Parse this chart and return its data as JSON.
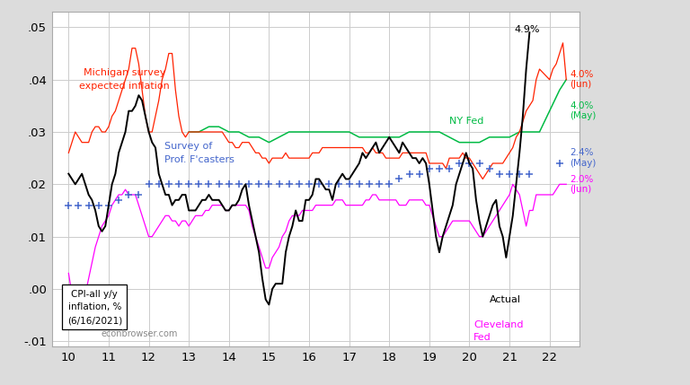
{
  "xlim": [
    9.58,
    22.75
  ],
  "ylim": [
    -0.011,
    0.053
  ],
  "yticks": [
    -0.01,
    0.0,
    0.01,
    0.02,
    0.03,
    0.04,
    0.05
  ],
  "ytick_labels": [
    "-.01",
    ".00",
    ".01",
    ".02",
    ".03",
    ".04",
    ".05"
  ],
  "xticks": [
    10,
    11,
    12,
    13,
    14,
    15,
    16,
    17,
    18,
    19,
    20,
    21,
    22
  ],
  "background_color": "#ffffff",
  "fig_color": "#dcdcdc",
  "grid_color": "#cccccc",
  "watermark": "econbrowser.com",
  "annotation_box": "CPI-all y/y\ninflation, %\n(6/16/2021)",
  "colors": {
    "actual": "#000000",
    "michigan": "#ff2200",
    "ny_fed": "#00bb44",
    "spf": "#4466cc",
    "cleveland": "#ff00ff"
  },
  "actual_x": [
    10.0,
    10.083,
    10.167,
    10.25,
    10.333,
    10.417,
    10.5,
    10.583,
    10.667,
    10.75,
    10.833,
    10.917,
    11.0,
    11.083,
    11.167,
    11.25,
    11.333,
    11.417,
    11.5,
    11.583,
    11.667,
    11.75,
    11.833,
    11.917,
    12.0,
    12.083,
    12.167,
    12.25,
    12.333,
    12.417,
    12.5,
    12.583,
    12.667,
    12.75,
    12.833,
    12.917,
    13.0,
    13.083,
    13.167,
    13.25,
    13.333,
    13.417,
    13.5,
    13.583,
    13.667,
    13.75,
    13.833,
    13.917,
    14.0,
    14.083,
    14.167,
    14.25,
    14.333,
    14.417,
    14.5,
    14.583,
    14.667,
    14.75,
    14.833,
    14.917,
    15.0,
    15.083,
    15.167,
    15.25,
    15.333,
    15.417,
    15.5,
    15.583,
    15.667,
    15.75,
    15.833,
    15.917,
    16.0,
    16.083,
    16.167,
    16.25,
    16.333,
    16.417,
    16.5,
    16.583,
    16.667,
    16.75,
    16.833,
    16.917,
    17.0,
    17.083,
    17.167,
    17.25,
    17.333,
    17.417,
    17.5,
    17.583,
    17.667,
    17.75,
    17.833,
    17.917,
    18.0,
    18.083,
    18.167,
    18.25,
    18.333,
    18.417,
    18.5,
    18.583,
    18.667,
    18.75,
    18.833,
    18.917,
    19.0,
    19.083,
    19.167,
    19.25,
    19.333,
    19.417,
    19.5,
    19.583,
    19.667,
    19.75,
    19.833,
    19.917,
    20.0,
    20.083,
    20.167,
    20.25,
    20.333,
    20.417,
    20.5,
    20.583,
    20.667,
    20.75,
    20.833,
    20.917,
    21.0,
    21.083,
    21.167,
    21.25,
    21.333,
    21.417,
    21.5
  ],
  "actual_y": [
    0.022,
    0.021,
    0.02,
    0.021,
    0.022,
    0.02,
    0.018,
    0.017,
    0.015,
    0.012,
    0.011,
    0.012,
    0.016,
    0.02,
    0.022,
    0.026,
    0.028,
    0.03,
    0.034,
    0.034,
    0.035,
    0.037,
    0.036,
    0.033,
    0.03,
    0.028,
    0.027,
    0.022,
    0.02,
    0.018,
    0.018,
    0.016,
    0.017,
    0.017,
    0.018,
    0.018,
    0.015,
    0.015,
    0.015,
    0.016,
    0.017,
    0.017,
    0.018,
    0.017,
    0.017,
    0.017,
    0.016,
    0.015,
    0.015,
    0.016,
    0.016,
    0.017,
    0.019,
    0.02,
    0.016,
    0.013,
    0.01,
    0.007,
    0.002,
    -0.002,
    -0.003,
    0.0,
    0.001,
    0.001,
    0.001,
    0.007,
    0.01,
    0.012,
    0.015,
    0.013,
    0.013,
    0.017,
    0.017,
    0.018,
    0.021,
    0.021,
    0.02,
    0.019,
    0.019,
    0.017,
    0.02,
    0.021,
    0.022,
    0.021,
    0.021,
    0.022,
    0.023,
    0.024,
    0.026,
    0.025,
    0.026,
    0.027,
    0.028,
    0.026,
    0.027,
    0.028,
    0.029,
    0.028,
    0.027,
    0.026,
    0.028,
    0.027,
    0.026,
    0.025,
    0.025,
    0.024,
    0.025,
    0.024,
    0.02,
    0.015,
    0.01,
    0.007,
    0.01,
    0.012,
    0.014,
    0.016,
    0.02,
    0.022,
    0.024,
    0.026,
    0.024,
    0.023,
    0.017,
    0.013,
    0.01,
    0.012,
    0.014,
    0.016,
    0.017,
    0.012,
    0.01,
    0.006,
    0.01,
    0.014,
    0.02,
    0.026,
    0.033,
    0.042,
    0.049
  ],
  "michigan_x": [
    10.0,
    10.083,
    10.167,
    10.25,
    10.333,
    10.417,
    10.5,
    10.583,
    10.667,
    10.75,
    10.833,
    10.917,
    11.0,
    11.083,
    11.167,
    11.25,
    11.333,
    11.417,
    11.5,
    11.583,
    11.667,
    11.75,
    11.833,
    11.917,
    12.0,
    12.083,
    12.167,
    12.25,
    12.333,
    12.417,
    12.5,
    12.583,
    12.667,
    12.75,
    12.833,
    12.917,
    13.0,
    13.083,
    13.167,
    13.25,
    13.333,
    13.417,
    13.5,
    13.583,
    13.667,
    13.75,
    13.833,
    13.917,
    14.0,
    14.083,
    14.167,
    14.25,
    14.333,
    14.417,
    14.5,
    14.583,
    14.667,
    14.75,
    14.833,
    14.917,
    15.0,
    15.083,
    15.167,
    15.25,
    15.333,
    15.417,
    15.5,
    15.583,
    15.667,
    15.75,
    15.833,
    15.917,
    16.0,
    16.083,
    16.167,
    16.25,
    16.333,
    16.417,
    16.5,
    16.583,
    16.667,
    16.75,
    16.833,
    16.917,
    17.0,
    17.083,
    17.167,
    17.25,
    17.333,
    17.417,
    17.5,
    17.583,
    17.667,
    17.75,
    17.833,
    17.917,
    18.0,
    18.083,
    18.167,
    18.25,
    18.333,
    18.417,
    18.5,
    18.583,
    18.667,
    18.75,
    18.833,
    18.917,
    19.0,
    19.083,
    19.167,
    19.25,
    19.333,
    19.417,
    19.5,
    19.583,
    19.667,
    19.75,
    19.833,
    19.917,
    20.0,
    20.083,
    20.167,
    20.25,
    20.333,
    20.417,
    20.5,
    20.583,
    20.667,
    20.75,
    20.833,
    20.917,
    21.0,
    21.083,
    21.167,
    21.25,
    21.333,
    21.417,
    21.5,
    21.583,
    21.667,
    21.75,
    22.0,
    22.083,
    22.167,
    22.25,
    22.333,
    22.417
  ],
  "michigan_y": [
    0.026,
    0.028,
    0.03,
    0.029,
    0.028,
    0.028,
    0.028,
    0.03,
    0.031,
    0.031,
    0.03,
    0.03,
    0.031,
    0.033,
    0.034,
    0.036,
    0.038,
    0.04,
    0.042,
    0.046,
    0.046,
    0.043,
    0.038,
    0.033,
    0.03,
    0.03,
    0.033,
    0.036,
    0.04,
    0.042,
    0.045,
    0.045,
    0.038,
    0.033,
    0.03,
    0.029,
    0.03,
    0.03,
    0.03,
    0.03,
    0.03,
    0.03,
    0.03,
    0.03,
    0.03,
    0.03,
    0.03,
    0.029,
    0.028,
    0.028,
    0.027,
    0.027,
    0.028,
    0.028,
    0.028,
    0.027,
    0.026,
    0.026,
    0.025,
    0.025,
    0.024,
    0.025,
    0.025,
    0.025,
    0.025,
    0.026,
    0.025,
    0.025,
    0.025,
    0.025,
    0.025,
    0.025,
    0.025,
    0.026,
    0.026,
    0.026,
    0.027,
    0.027,
    0.027,
    0.027,
    0.027,
    0.027,
    0.027,
    0.027,
    0.027,
    0.027,
    0.027,
    0.027,
    0.027,
    0.026,
    0.026,
    0.027,
    0.026,
    0.026,
    0.026,
    0.025,
    0.025,
    0.025,
    0.025,
    0.025,
    0.026,
    0.026,
    0.026,
    0.026,
    0.026,
    0.026,
    0.026,
    0.026,
    0.024,
    0.024,
    0.024,
    0.024,
    0.024,
    0.023,
    0.025,
    0.025,
    0.025,
    0.025,
    0.026,
    0.025,
    0.025,
    0.024,
    0.023,
    0.022,
    0.021,
    0.022,
    0.023,
    0.024,
    0.024,
    0.024,
    0.024,
    0.025,
    0.026,
    0.027,
    0.029,
    0.03,
    0.032,
    0.034,
    0.035,
    0.036,
    0.04,
    0.042,
    0.04,
    0.042,
    0.043,
    0.045,
    0.047,
    0.04
  ],
  "ny_fed_x": [
    13.0,
    13.25,
    13.5,
    13.75,
    14.0,
    14.25,
    14.5,
    14.75,
    15.0,
    15.25,
    15.5,
    15.75,
    16.0,
    16.25,
    16.5,
    16.75,
    17.0,
    17.25,
    17.5,
    17.75,
    18.0,
    18.25,
    18.5,
    18.75,
    19.0,
    19.25,
    19.5,
    19.75,
    20.0,
    20.25,
    20.5,
    20.75,
    21.0,
    21.25,
    21.5,
    21.75,
    22.0,
    22.25,
    22.417
  ],
  "ny_fed_y": [
    0.03,
    0.03,
    0.031,
    0.031,
    0.03,
    0.03,
    0.029,
    0.029,
    0.028,
    0.029,
    0.03,
    0.03,
    0.03,
    0.03,
    0.03,
    0.03,
    0.03,
    0.029,
    0.029,
    0.029,
    0.029,
    0.029,
    0.03,
    0.03,
    0.03,
    0.03,
    0.029,
    0.028,
    0.028,
    0.028,
    0.029,
    0.029,
    0.029,
    0.03,
    0.03,
    0.03,
    0.034,
    0.038,
    0.04
  ],
  "spf_x": [
    10.0,
    10.25,
    10.5,
    10.75,
    11.0,
    11.25,
    11.5,
    11.75,
    12.0,
    12.25,
    12.5,
    12.75,
    13.0,
    13.25,
    13.5,
    13.75,
    14.0,
    14.25,
    14.5,
    14.75,
    15.0,
    15.25,
    15.5,
    15.75,
    16.0,
    16.25,
    16.5,
    16.75,
    17.0,
    17.25,
    17.5,
    17.75,
    18.0,
    18.25,
    18.5,
    18.75,
    19.0,
    19.25,
    19.5,
    19.75,
    20.0,
    20.25,
    20.5,
    20.75,
    21.0,
    21.25,
    21.5,
    22.25
  ],
  "spf_y": [
    0.016,
    0.016,
    0.016,
    0.016,
    0.016,
    0.017,
    0.018,
    0.018,
    0.02,
    0.02,
    0.02,
    0.02,
    0.02,
    0.02,
    0.02,
    0.02,
    0.02,
    0.02,
    0.02,
    0.02,
    0.02,
    0.02,
    0.02,
    0.02,
    0.02,
    0.02,
    0.02,
    0.02,
    0.02,
    0.02,
    0.02,
    0.02,
    0.02,
    0.021,
    0.022,
    0.022,
    0.023,
    0.023,
    0.023,
    0.024,
    0.024,
    0.024,
    0.023,
    0.022,
    0.022,
    0.022,
    0.022,
    0.024
  ],
  "cleveland_x": [
    10.0,
    10.083,
    10.167,
    10.25,
    10.333,
    10.417,
    10.5,
    10.583,
    10.667,
    10.75,
    10.833,
    10.917,
    11.0,
    11.083,
    11.167,
    11.25,
    11.333,
    11.417,
    11.5,
    11.583,
    11.667,
    11.75,
    11.833,
    11.917,
    12.0,
    12.083,
    12.167,
    12.25,
    12.333,
    12.417,
    12.5,
    12.583,
    12.667,
    12.75,
    12.833,
    12.917,
    13.0,
    13.083,
    13.167,
    13.25,
    13.333,
    13.417,
    13.5,
    13.583,
    13.667,
    13.75,
    13.833,
    13.917,
    14.0,
    14.083,
    14.167,
    14.25,
    14.333,
    14.417,
    14.5,
    14.583,
    14.667,
    14.75,
    14.833,
    14.917,
    15.0,
    15.083,
    15.167,
    15.25,
    15.333,
    15.417,
    15.5,
    15.583,
    15.667,
    15.75,
    15.833,
    15.917,
    16.0,
    16.083,
    16.167,
    16.25,
    16.333,
    16.417,
    16.5,
    16.583,
    16.667,
    16.75,
    16.833,
    16.917,
    17.0,
    17.083,
    17.167,
    17.25,
    17.333,
    17.417,
    17.5,
    17.583,
    17.667,
    17.75,
    17.833,
    17.917,
    18.0,
    18.083,
    18.167,
    18.25,
    18.333,
    18.417,
    18.5,
    18.583,
    18.667,
    18.75,
    18.833,
    18.917,
    19.0,
    19.083,
    19.167,
    19.25,
    19.333,
    19.417,
    19.5,
    19.583,
    19.667,
    19.75,
    19.833,
    19.917,
    20.0,
    20.083,
    20.167,
    20.25,
    20.333,
    20.417,
    20.5,
    20.583,
    20.667,
    20.75,
    20.833,
    20.917,
    21.0,
    21.083,
    21.167,
    21.25,
    21.333,
    21.417,
    21.5,
    21.583,
    21.667,
    21.75,
    22.0,
    22.083,
    22.167,
    22.25,
    22.333,
    22.417
  ],
  "cleveland_y": [
    0.003,
    -0.001,
    -0.003,
    -0.004,
    -0.003,
    -0.001,
    0.002,
    0.005,
    0.008,
    0.01,
    0.012,
    0.013,
    0.014,
    0.016,
    0.017,
    0.018,
    0.018,
    0.019,
    0.018,
    0.018,
    0.018,
    0.016,
    0.014,
    0.012,
    0.01,
    0.01,
    0.011,
    0.012,
    0.013,
    0.014,
    0.014,
    0.013,
    0.013,
    0.012,
    0.013,
    0.013,
    0.012,
    0.013,
    0.014,
    0.014,
    0.014,
    0.015,
    0.015,
    0.016,
    0.016,
    0.016,
    0.016,
    0.015,
    0.015,
    0.016,
    0.016,
    0.016,
    0.016,
    0.016,
    0.015,
    0.012,
    0.01,
    0.008,
    0.006,
    0.004,
    0.004,
    0.006,
    0.007,
    0.008,
    0.01,
    0.011,
    0.013,
    0.014,
    0.014,
    0.014,
    0.015,
    0.015,
    0.015,
    0.015,
    0.016,
    0.016,
    0.016,
    0.016,
    0.016,
    0.016,
    0.017,
    0.017,
    0.017,
    0.016,
    0.016,
    0.016,
    0.016,
    0.016,
    0.016,
    0.017,
    0.017,
    0.018,
    0.018,
    0.017,
    0.017,
    0.017,
    0.017,
    0.017,
    0.017,
    0.016,
    0.016,
    0.016,
    0.017,
    0.017,
    0.017,
    0.017,
    0.017,
    0.016,
    0.016,
    0.014,
    0.012,
    0.01,
    0.01,
    0.011,
    0.012,
    0.013,
    0.013,
    0.013,
    0.013,
    0.013,
    0.013,
    0.012,
    0.011,
    0.01,
    0.01,
    0.011,
    0.012,
    0.013,
    0.014,
    0.015,
    0.016,
    0.017,
    0.018,
    0.02,
    0.019,
    0.018,
    0.015,
    0.012,
    0.015,
    0.015,
    0.018,
    0.018,
    0.018,
    0.018,
    0.019,
    0.02,
    0.02,
    0.02
  ]
}
